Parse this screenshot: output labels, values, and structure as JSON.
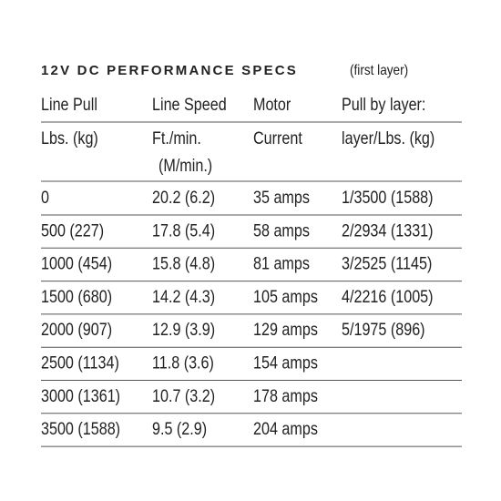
{
  "title": "12V DC PERFORMANCE SPECS",
  "subtitle": "(first layer)",
  "table": {
    "header": [
      [
        "Line Pull",
        "Line Speed",
        "Motor",
        "Pull by layer:"
      ],
      [
        "Lbs. (kg)",
        [
          "Ft./min.",
          "(M/min.)"
        ],
        "Current",
        "layer/Lbs. (kg)"
      ]
    ],
    "rows": [
      [
        "0",
        "20.2 (6.2)",
        "35 amps",
        "1/3500 (1588)"
      ],
      [
        "500 (227)",
        "17.8 (5.4)",
        "58 amps",
        "2/2934 (1331)"
      ],
      [
        "1000 (454)",
        "15.8 (4.8)",
        "81 amps",
        "3/2525 (1145)"
      ],
      [
        "1500 (680)",
        "14.2 (4.3)",
        "105 amps",
        "4/2216 (1005)"
      ],
      [
        "2000 (907)",
        "12.9 (3.9)",
        "129 amps",
        "5/1975 (896)"
      ],
      [
        "2500 (1134)",
        "11.8 (3.6)",
        "154 amps"
      ],
      [
        "3000 (1361)",
        "10.7 (3.2)",
        "178 amps"
      ],
      [
        "3500 (1588)",
        "9.5 (2.9)",
        "204 amps"
      ]
    ]
  }
}
